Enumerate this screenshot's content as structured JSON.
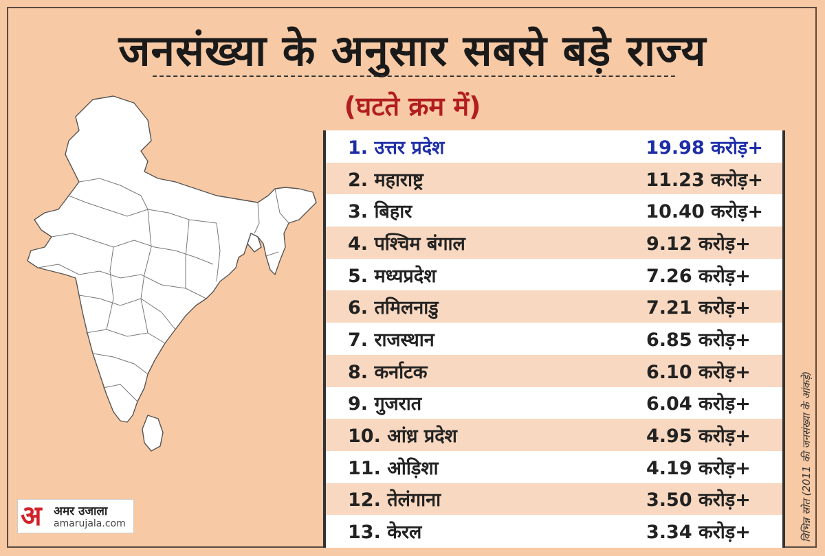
{
  "title": "जनसंख्या के अनुसार सबसे बड़े राज्य",
  "subtitle": "(घटते क्रम में)",
  "rows": [
    {
      "name": "1. उत्तर प्रदेश",
      "value": "19.98 करोड़+"
    },
    {
      "name": "2. महाराष्ट्र",
      "value": "11.23 करोड़+"
    },
    {
      "name": "3. बिहार",
      "value": "10.40 करोड़+"
    },
    {
      "name": "4. पश्चिम बंगाल",
      "value": "9.12 करोड़+"
    },
    {
      "name": "5. मध्यप्रदेश",
      "value": "7.26 करोड़+"
    },
    {
      "name": "6. तमिलनाडु",
      "value": "7.21 करोड़+"
    },
    {
      "name": "7. राजस्थान",
      "value": "6.85 करोड़+"
    },
    {
      "name": "8. कर्नाटक",
      "value": "6.10 करोड़+"
    },
    {
      "name": "9. गुजरात",
      "value": "6.04 करोड़+"
    },
    {
      "name": "10. आंध्र प्रदेश",
      "value": "4.95 करोड़+"
    },
    {
      "name": "11. ओड़िशा",
      "value": "4.19 करोड़+"
    },
    {
      "name": "12. तेलंगाना",
      "value": "3.50 करोड़+"
    },
    {
      "name": "13. केरल",
      "value": "3.34 करोड़+"
    }
  ],
  "source_note": "विभिन्न स्रोत (2011 की जनसंख्या के आंकड़े)",
  "logo": {
    "mark": "अ",
    "name": "अमर उजाला",
    "site": "amarujala.com"
  },
  "colors": {
    "background": "#f7c9a4",
    "title_text": "#1a1a1a",
    "subtitle_text": "#b21d1d",
    "first_row_text": "#1e2ea8",
    "alt_row": "#f8d8c0"
  },
  "icons": [
    "india-map-icon",
    "amar-ujala-logo-icon"
  ]
}
